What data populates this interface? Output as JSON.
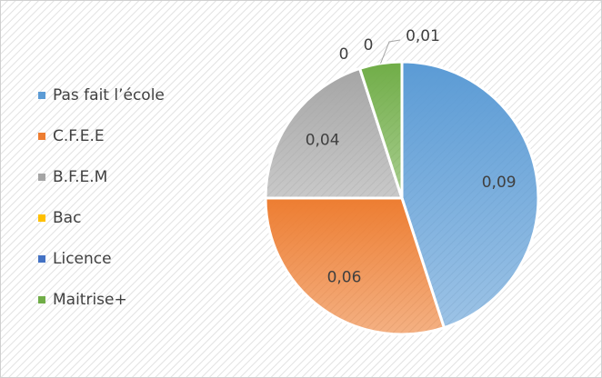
{
  "chart_data": {
    "type": "pie",
    "categories": [
      "Pas fait l’école",
      "C.F.E.E",
      "B.F.E.M",
      "Bac",
      "Licence",
      "Maitrise+"
    ],
    "values": [
      0.09,
      0.06,
      0.04,
      0,
      0,
      0.01
    ],
    "value_labels": [
      "0,09",
      "0,06",
      "0,04",
      "0",
      "0",
      "0,01"
    ],
    "colors": [
      "#5b9bd5",
      "#ed7d31",
      "#a5a5a5",
      "#ffc000",
      "#4472c4",
      "#70ad47"
    ],
    "legend": "left"
  }
}
